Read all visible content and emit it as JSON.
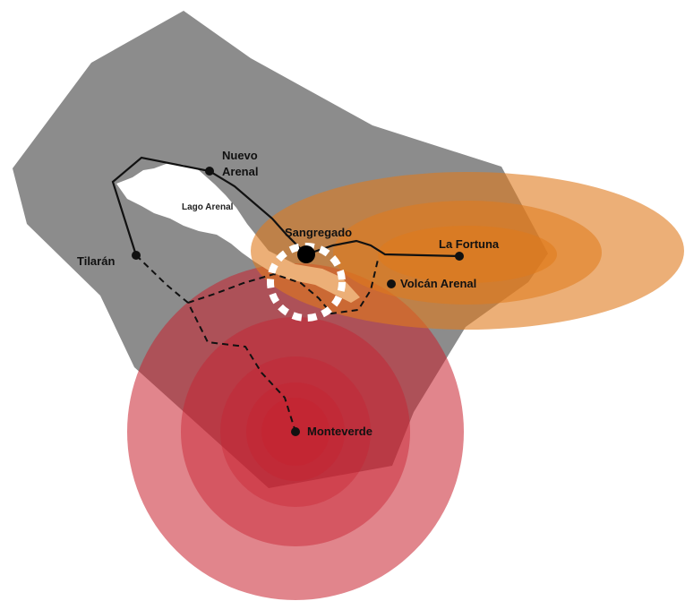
{
  "colors": {
    "background": "#ffffff",
    "region_fill": "#8c8c8c",
    "lake_fill": "#ffffff",
    "zone_orange": "#e07a1c",
    "zone_red": "#c8202e",
    "route_line": "#111111",
    "hub_ring_stroke": "#ffffff"
  },
  "lake": {
    "label": "Lago Arenal"
  },
  "places": {
    "nuevo_arenal": {
      "line1": "Nuevo",
      "line2": "Arenal"
    },
    "tilaran": {
      "label": "Tilarán"
    },
    "sangregado": {
      "label": "Sangregado"
    },
    "la_fortuna": {
      "label": "La Fortuna"
    },
    "volcan_arenal": {
      "label": "Volcán Arenal"
    },
    "monteverde": {
      "label": "Monteverde"
    }
  },
  "routes": {
    "paved": "solid",
    "unpaved": "dashed"
  },
  "icons": {
    "town_marker": "filled-circle",
    "hub_marker": "large-filled-circle",
    "hub_highlight": "dashed-ring"
  }
}
